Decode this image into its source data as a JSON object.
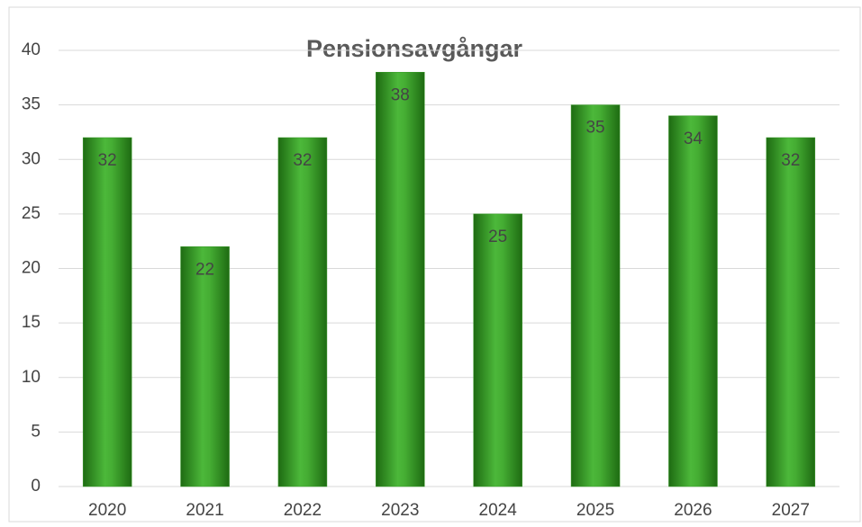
{
  "chart_data": {
    "type": "bar",
    "title": "Pensionsavgångar",
    "categories": [
      "2020",
      "2021",
      "2022",
      "2023",
      "2024",
      "2025",
      "2026",
      "2027"
    ],
    "values": [
      32,
      22,
      32,
      38,
      25,
      35,
      34,
      32
    ],
    "color": "#3a9a2a",
    "ylim": [
      0,
      40
    ],
    "yticks": [
      0,
      5,
      10,
      15,
      20,
      25,
      30,
      35,
      40
    ],
    "grid": true
  }
}
